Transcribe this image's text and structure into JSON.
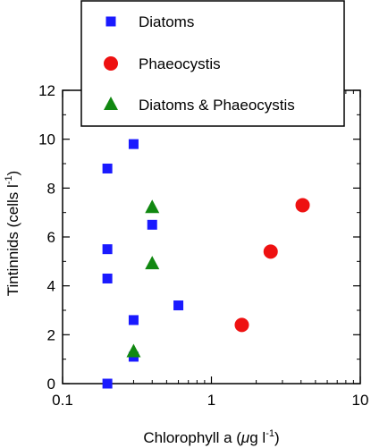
{
  "chart_data": {
    "type": "scatter",
    "xscale": "log",
    "xlim": [
      0.1,
      10
    ],
    "ylim": [
      0,
      12
    ],
    "grid": false,
    "legend_position": "top",
    "xlabel": {
      "main": "Chlorophyll a (",
      "unit_mu": "μ",
      "unit_rest": "g l",
      "unit_exp": "-1",
      "close": ")"
    },
    "ylabel": {
      "main": "Tintinnids (cells l",
      "exp": "-1",
      "close": ")"
    },
    "x_ticks": [
      {
        "value": 0.1,
        "label": "0.1"
      },
      {
        "value": 1,
        "label": "1"
      },
      {
        "value": 10,
        "label": "10"
      }
    ],
    "y_ticks": [
      {
        "value": 0,
        "label": "0"
      },
      {
        "value": 2,
        "label": "2"
      },
      {
        "value": 4,
        "label": "4"
      },
      {
        "value": 6,
        "label": "6"
      },
      {
        "value": 8,
        "label": "8"
      },
      {
        "value": 10,
        "label": "10"
      },
      {
        "value": 12,
        "label": "12"
      }
    ],
    "series": [
      {
        "name": "Diatoms",
        "marker": "square",
        "color": "#1a1aff",
        "points": [
          {
            "x": 0.2,
            "y": 0
          },
          {
            "x": 0.2,
            "y": 4.3
          },
          {
            "x": 0.2,
            "y": 5.5
          },
          {
            "x": 0.2,
            "y": 8.8
          },
          {
            "x": 0.3,
            "y": 1.1
          },
          {
            "x": 0.3,
            "y": 2.6
          },
          {
            "x": 0.3,
            "y": 9.8
          },
          {
            "x": 0.4,
            "y": 6.5
          },
          {
            "x": 0.6,
            "y": 3.2
          }
        ]
      },
      {
        "name": "Phaeocystis",
        "marker": "circle",
        "color": "#ee1111",
        "points": [
          {
            "x": 1.6,
            "y": 2.4
          },
          {
            "x": 2.5,
            "y": 5.4
          },
          {
            "x": 4.1,
            "y": 7.3
          }
        ]
      },
      {
        "name": "Diatoms & Phaeocystis",
        "marker": "triangle",
        "color": "#118811",
        "points": [
          {
            "x": 0.3,
            "y": 1.3
          },
          {
            "x": 0.4,
            "y": 4.9
          },
          {
            "x": 0.4,
            "y": 7.2
          }
        ]
      }
    ]
  }
}
